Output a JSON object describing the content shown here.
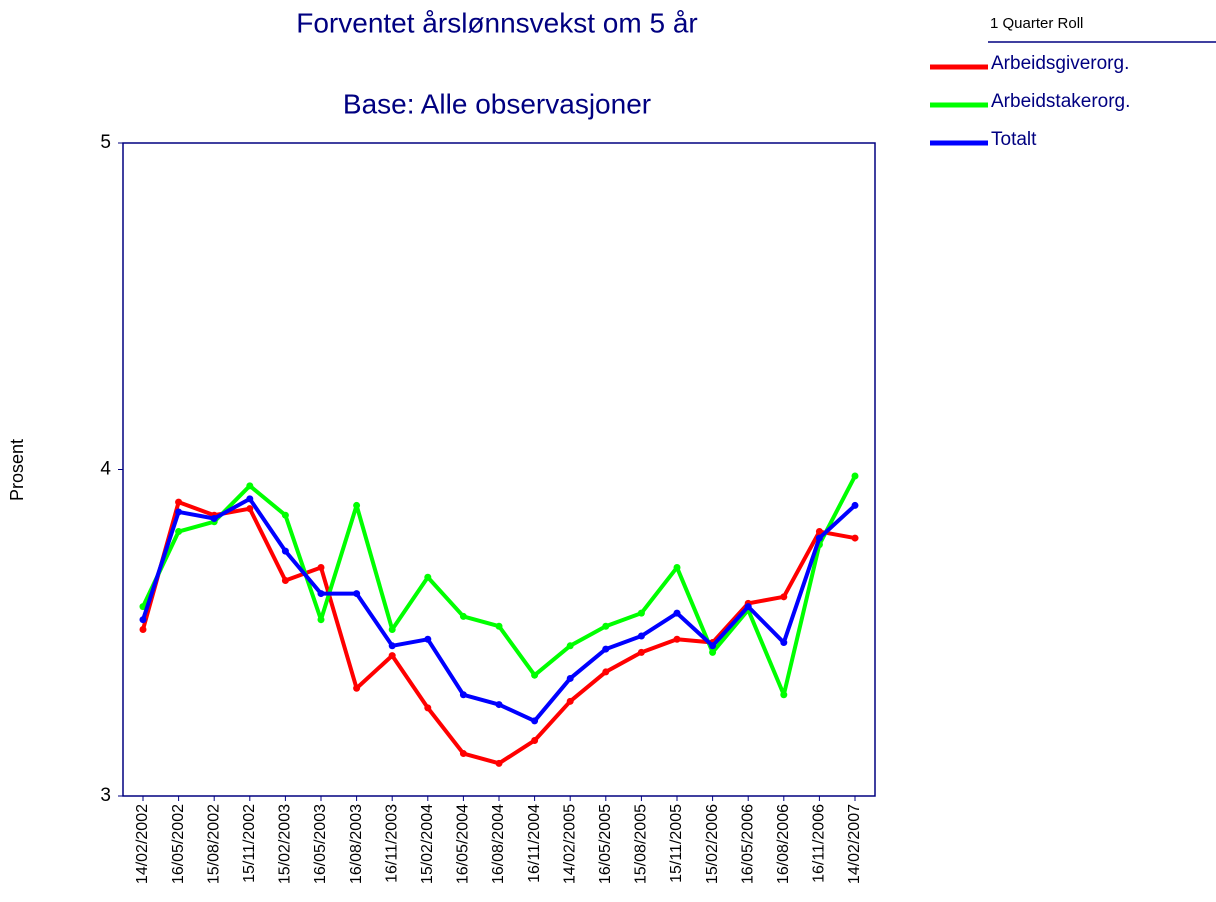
{
  "chart_data": {
    "type": "line",
    "title": "Forventet årslønnsvekst om 5 år",
    "subtitle": "Base: Alle observasjoner",
    "ylabel": "Prosent",
    "legend_title": "1 Quarter Roll",
    "legend": "right",
    "categories": [
      "14/02/2002",
      "16/05/2002",
      "15/08/2002",
      "15/11/2002",
      "15/02/2003",
      "16/05/2003",
      "16/08/2003",
      "16/11/2003",
      "15/02/2004",
      "16/05/2004",
      "16/08/2004",
      "16/11/2004",
      "14/02/2005",
      "16/05/2005",
      "15/08/2005",
      "15/11/2005",
      "15/02/2006",
      "16/05/2006",
      "16/08/2006",
      "16/11/2006",
      "14/02/2007"
    ],
    "series": [
      {
        "name": "Arbeidsgiverorg.",
        "color": "#ff0000",
        "values": [
          3.51,
          3.9,
          3.86,
          3.88,
          3.66,
          3.7,
          3.33,
          3.43,
          3.27,
          3.13,
          3.1,
          3.17,
          3.29,
          3.38,
          3.44,
          3.48,
          3.47,
          3.59,
          3.61,
          3.81,
          3.79
        ]
      },
      {
        "name": "Arbeidstakerorg.",
        "color": "#00ff00",
        "values": [
          3.58,
          3.81,
          3.84,
          3.95,
          3.86,
          3.54,
          3.89,
          3.51,
          3.67,
          3.55,
          3.52,
          3.37,
          3.46,
          3.52,
          3.56,
          3.7,
          3.44,
          3.57,
          3.31,
          3.77,
          3.98
        ]
      },
      {
        "name": "Totalt",
        "color": "#0000ff",
        "values": [
          3.54,
          3.87,
          3.85,
          3.91,
          3.75,
          3.62,
          3.62,
          3.46,
          3.48,
          3.31,
          3.28,
          3.23,
          3.36,
          3.45,
          3.49,
          3.56,
          3.46,
          3.58,
          3.47,
          3.79,
          3.89
        ]
      }
    ],
    "ylim": [
      3,
      5
    ],
    "yticks": [
      3,
      4,
      5
    ]
  }
}
